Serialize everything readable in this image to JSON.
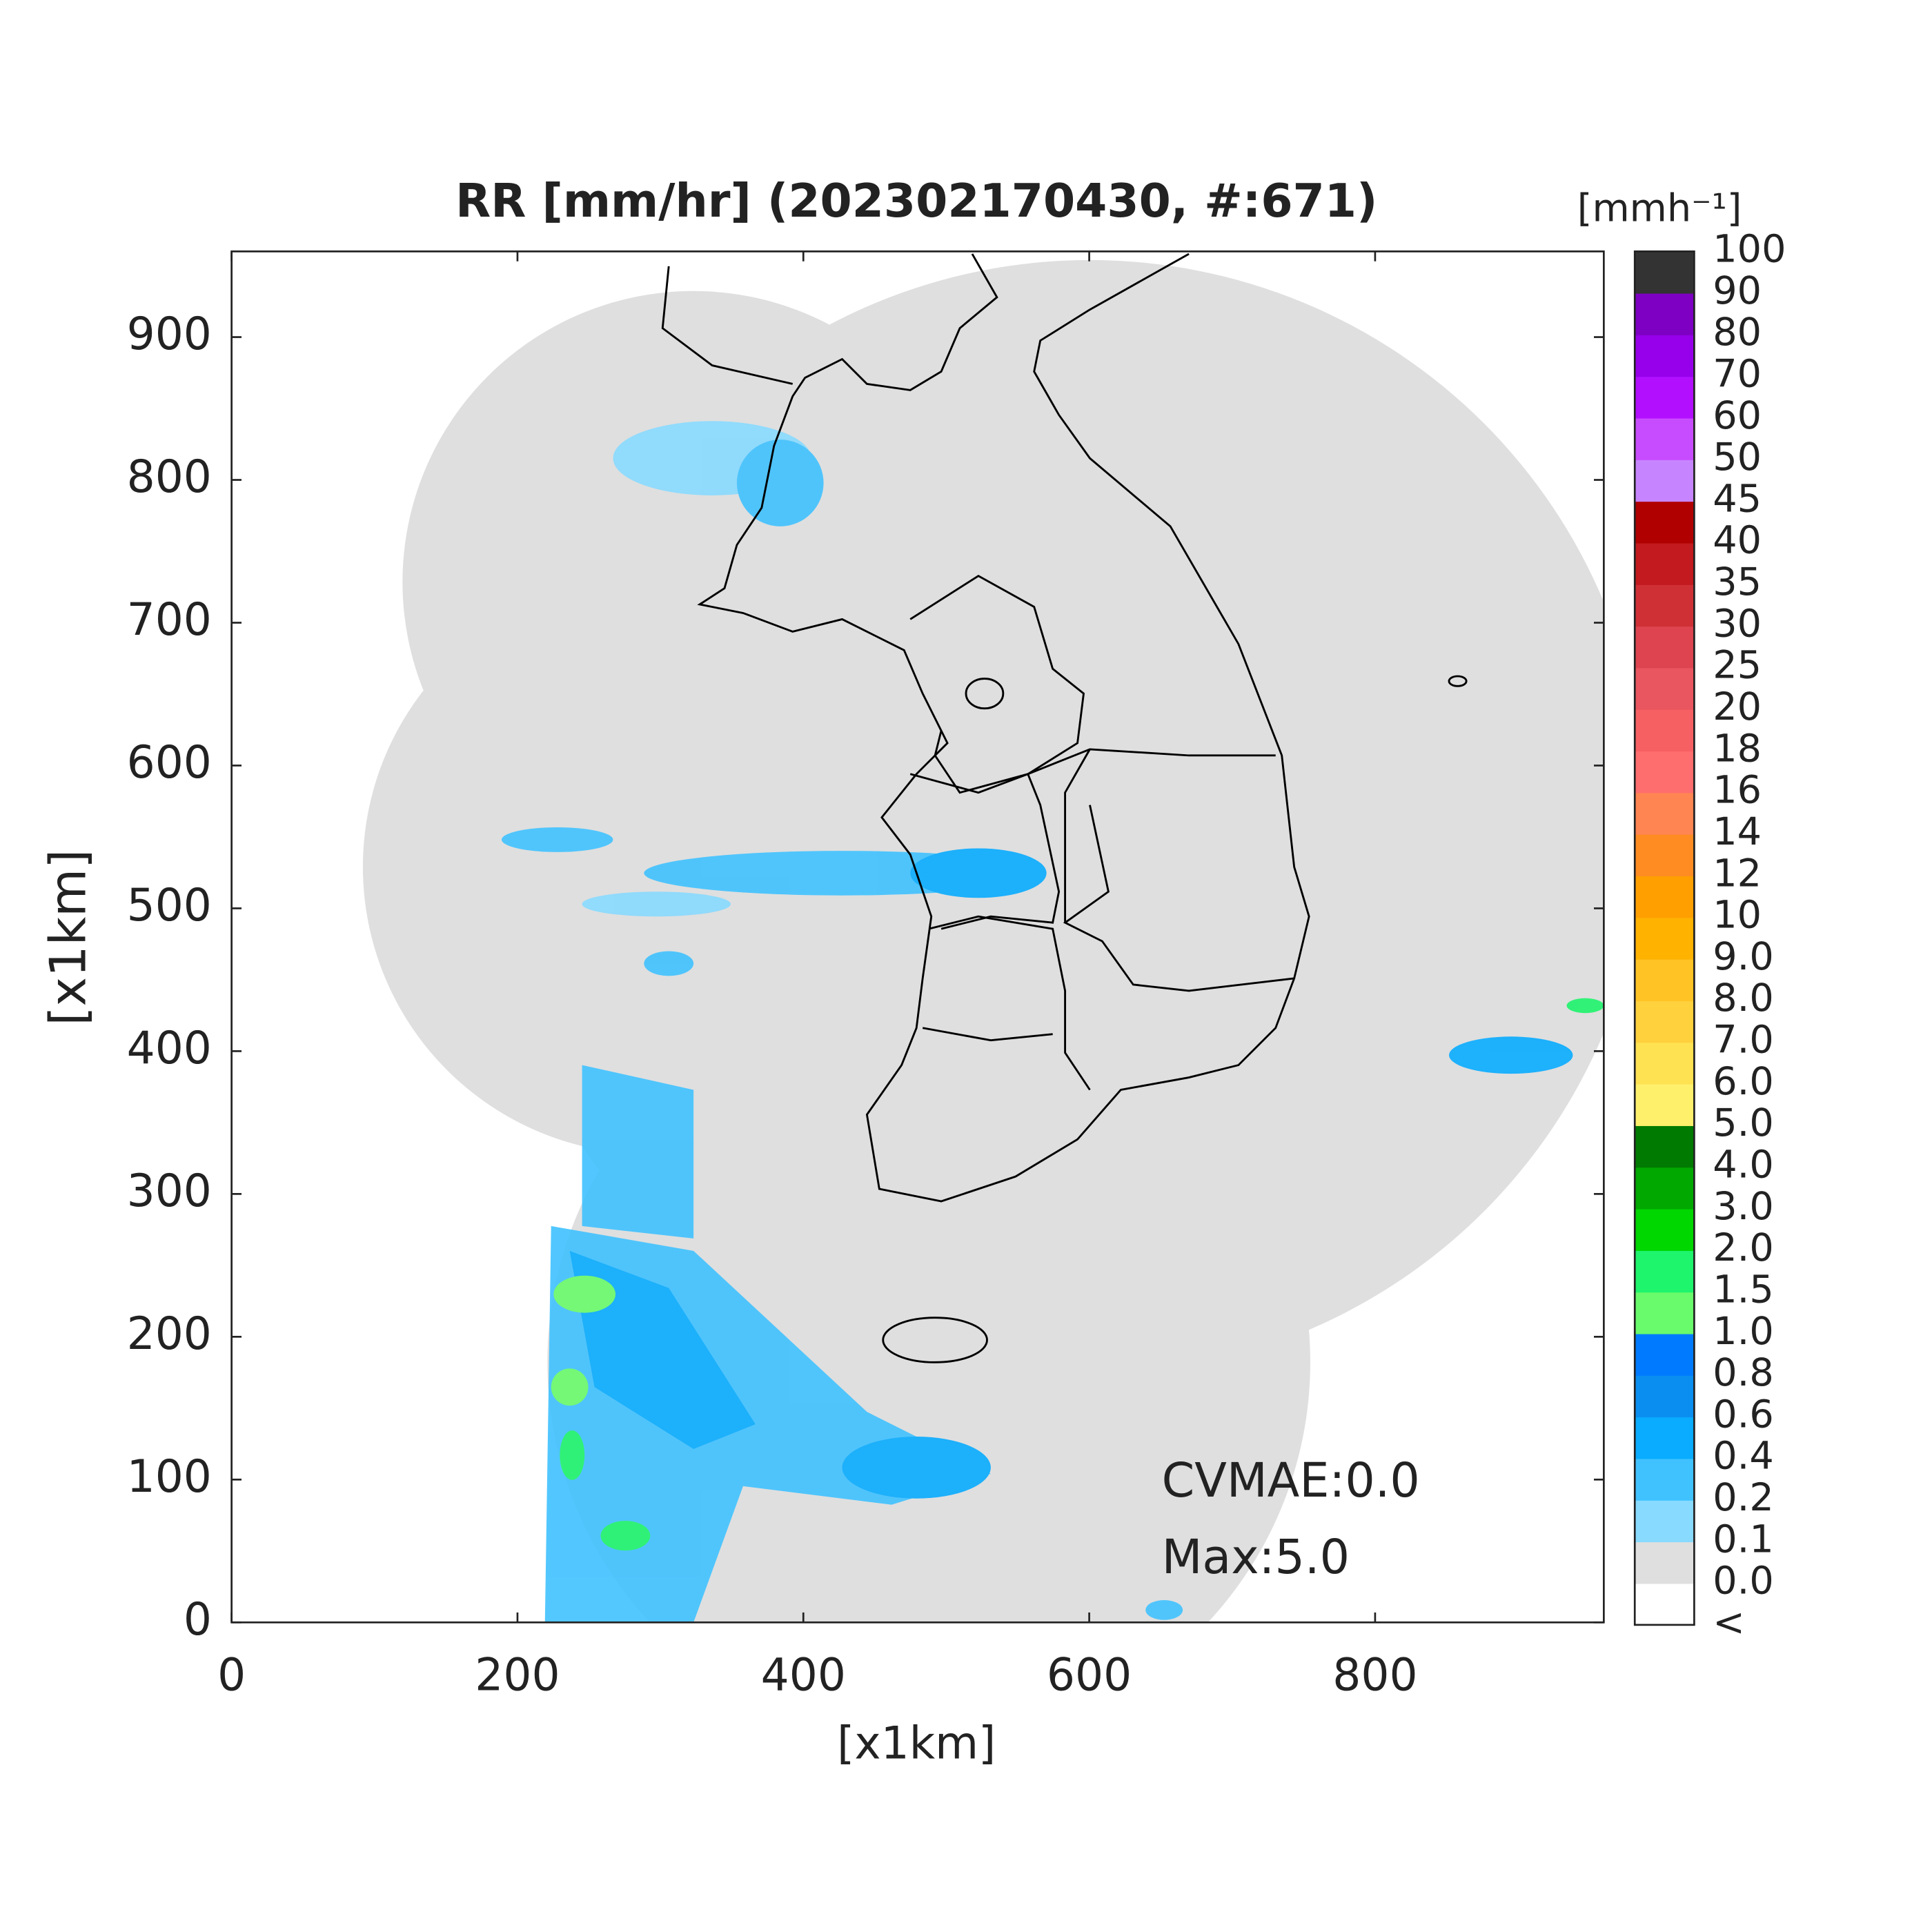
{
  "chart_data": {
    "type": "heatmap",
    "title": "RR [mm/hr] (202302170430, #:671)",
    "x_label": "[x1km]",
    "y_label": "[x1km]",
    "xlim": [
      0,
      960
    ],
    "ylim": [
      0,
      960
    ],
    "xticks": [
      0,
      200,
      400,
      600,
      800
    ],
    "yticks": [
      0,
      100,
      200,
      300,
      400,
      500,
      600,
      700,
      800,
      900
    ],
    "annotations": [
      "CVMAE:0.0",
      "Max:5.0"
    ],
    "colorbar": {
      "label": "[mmh⁻¹]",
      "levels": [
        "<",
        "0.0",
        "0.1",
        "0.2",
        "0.4",
        "0.6",
        "0.8",
        "1.0",
        "1.5",
        "2.0",
        "3.0",
        "4.0",
        "5.0",
        "6.0",
        "7.0",
        "8.0",
        "9.0",
        "10",
        "12",
        "14",
        "16",
        "18",
        "20",
        "25",
        "30",
        "35",
        "40",
        "45",
        "50",
        "60",
        "70",
        "80",
        "90",
        "100"
      ],
      "colors": [
        "#ffffff",
        "#dfdfdf",
        "#88daff",
        "#40c2ff",
        "#09acff",
        "#0a8ff0",
        "#007bff",
        "#69fb6b",
        "#1ef46c",
        "#00d600",
        "#00a800",
        "#007a00",
        "#fff06c",
        "#ffe252",
        "#ffd13d",
        "#ffc325",
        "#ffb200",
        "#ff9f00",
        "#ff8c22",
        "#ff8552",
        "#ff6e6e",
        "#f76063",
        "#e95660",
        "#dd4450",
        "#cf3036",
        "#c21a1e",
        "#b00000",
        "#c685ff",
        "#c84cff",
        "#b20fff",
        "#9600ea",
        "#7d00c3",
        "#333333"
      ]
    }
  }
}
